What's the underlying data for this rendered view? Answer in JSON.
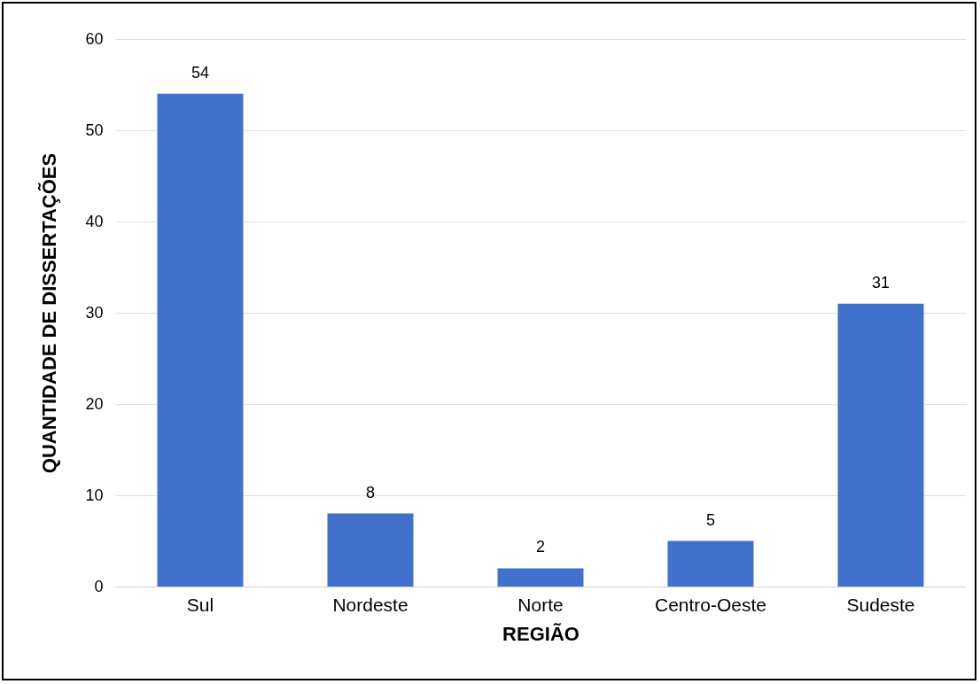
{
  "chart_data": {
    "type": "bar",
    "xlabel": "REGIÃO",
    "ylabel": "QUANTIDADE DE DISSERTAÇÕES",
    "categories": [
      "Sul",
      "Nordeste",
      "Norte",
      "Centro-Oeste",
      "Sudeste"
    ],
    "values": [
      54,
      8,
      2,
      5,
      31
    ],
    "color": "#4171cc",
    "ylim": [
      0,
      60
    ],
    "yticks": [
      0,
      10,
      20,
      30,
      40,
      50,
      60
    ],
    "grid": "y",
    "data_labels": true
  }
}
